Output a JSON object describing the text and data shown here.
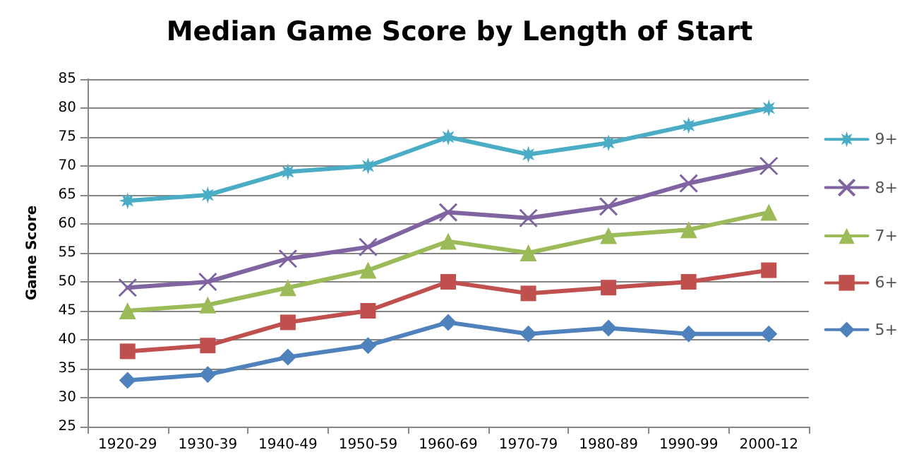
{
  "chart_data": {
    "type": "line",
    "title": "Median Game Score by Length of Start",
    "ylabel": "Game Score",
    "categories": [
      "1920-29",
      "1930-39",
      "1940-49",
      "1950-59",
      "1960-69",
      "1970-79",
      "1980-89",
      "1990-99",
      "2000-12"
    ],
    "series": [
      {
        "name": "9+",
        "color": "#4bacc6",
        "marker": "star",
        "values": [
          64,
          65,
          69,
          70,
          75,
          72,
          74,
          77,
          80
        ]
      },
      {
        "name": "8+",
        "color": "#8064a2",
        "marker": "cross",
        "values": [
          49,
          50,
          54,
          56,
          62,
          61,
          63,
          67,
          70
        ]
      },
      {
        "name": "7+",
        "color": "#9bbb59",
        "marker": "triangle",
        "values": [
          45,
          46,
          49,
          52,
          57,
          55,
          58,
          59,
          62
        ]
      },
      {
        "name": "6+",
        "color": "#c0504d",
        "marker": "square",
        "values": [
          38,
          39,
          43,
          45,
          50,
          48,
          49,
          50,
          52
        ]
      },
      {
        "name": "5+",
        "color": "#4f81bd",
        "marker": "diamond",
        "values": [
          33,
          34,
          37,
          39,
          43,
          41,
          42,
          41,
          41
        ]
      }
    ],
    "ylim": [
      25,
      85
    ],
    "yticks": [
      25,
      30,
      35,
      40,
      45,
      50,
      55,
      60,
      65,
      70,
      75,
      80,
      85
    ],
    "grid": "y",
    "legend": "right",
    "line_style": "solid"
  }
}
